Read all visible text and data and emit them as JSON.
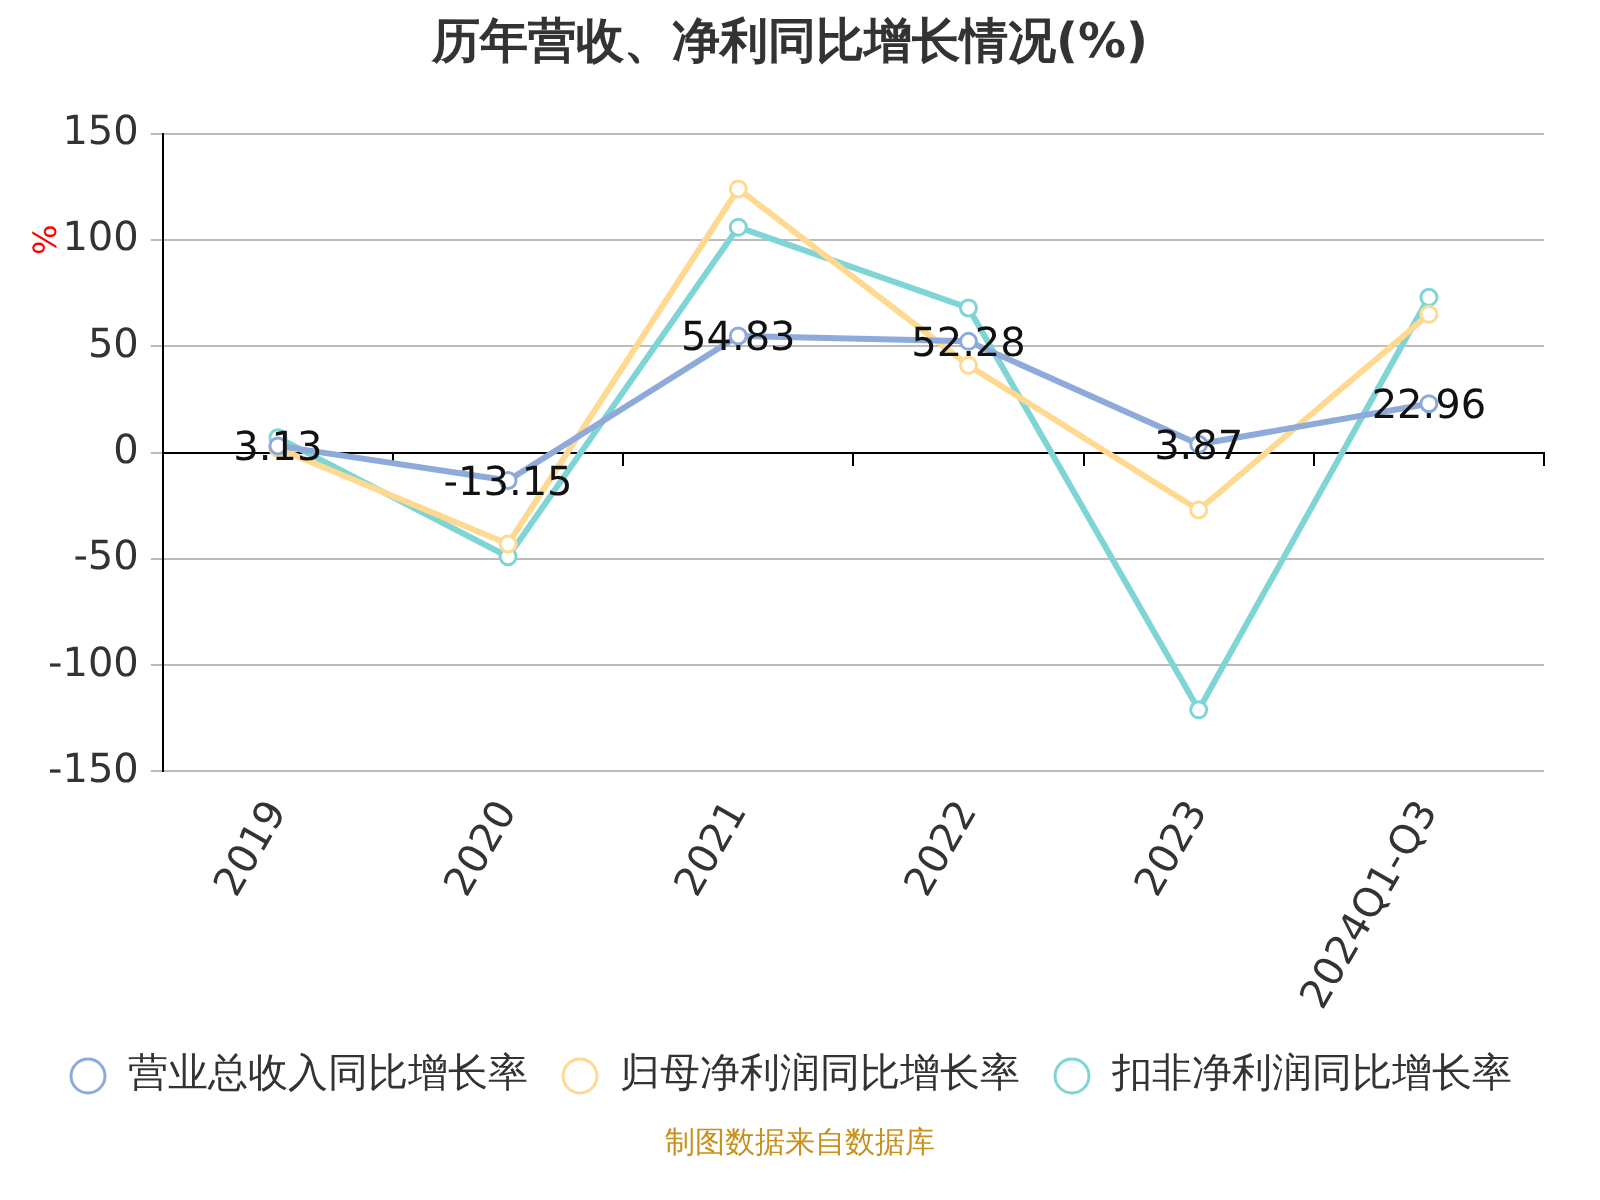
{
  "chart_data": {
    "type": "line",
    "title": "历年营收、净利同比增长情况(%)",
    "ylabel": "%",
    "categories": [
      "2019",
      "2020",
      "2021",
      "2022",
      "2023",
      "2024Q1-Q3"
    ],
    "series": [
      {
        "name": "营业总收入同比增长率",
        "color": "#8eaadb",
        "values": [
          3.13,
          -13.15,
          54.83,
          52.28,
          3.87,
          22.96
        ],
        "value_labels": [
          "3.13",
          "-13.15",
          "54.83",
          "52.28",
          "3.87",
          "22.96"
        ]
      },
      {
        "name": "归母净利润同比增长率",
        "color": "#ffd98f",
        "values": [
          2,
          -43,
          124,
          41,
          -27,
          65
        ]
      },
      {
        "name": "扣非净利润同比增长率",
        "color": "#7fd4d6",
        "values": [
          7,
          -49,
          106,
          68,
          -121,
          73
        ]
      }
    ],
    "ylim": [
      -150,
      150
    ],
    "yticks": [
      -150,
      -100,
      -50,
      0,
      50,
      100,
      150
    ],
    "grid": "y",
    "legend": "bottom",
    "marker": "circle",
    "line_style": "solid",
    "annotations": [
      "制图数据来自数据库"
    ]
  }
}
